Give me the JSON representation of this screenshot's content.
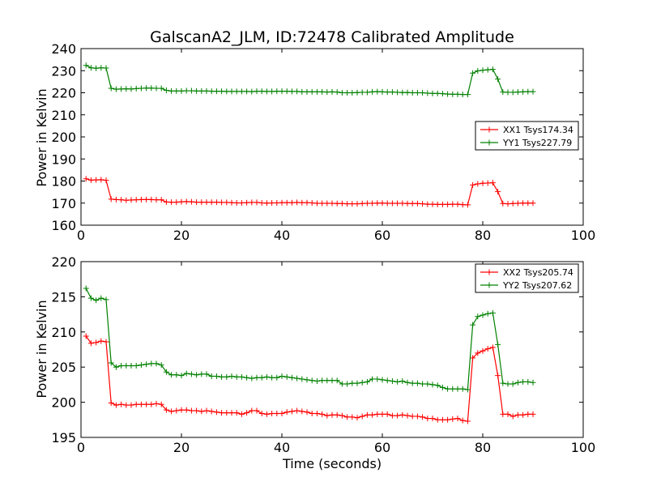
{
  "chart_data": [
    {
      "type": "line",
      "title": "GalscanA2_JLM, ID:72478 Calibrated Amplitude",
      "xlabel": "",
      "ylabel": "Power in Kelvin",
      "xlim": [
        0,
        100
      ],
      "ylim": [
        160,
        240
      ],
      "xticks": [
        0,
        20,
        40,
        60,
        80,
        100
      ],
      "yticks": [
        160,
        170,
        180,
        190,
        200,
        210,
        220,
        230,
        240
      ],
      "xtick_labels": [
        "0",
        "20",
        "40",
        "60",
        "80",
        "100"
      ],
      "ytick_labels": [
        "160",
        "170",
        "180",
        "190",
        "200",
        "210",
        "220",
        "230",
        "240"
      ],
      "grid": false,
      "legend_position": "center-right",
      "marker": "+",
      "x": [
        1,
        2,
        3,
        4,
        5,
        6,
        7,
        8,
        9,
        10,
        11,
        12,
        13,
        14,
        15,
        16,
        17,
        18,
        19,
        20,
        21,
        22,
        23,
        24,
        25,
        26,
        27,
        28,
        29,
        30,
        31,
        32,
        33,
        34,
        35,
        36,
        37,
        38,
        39,
        40,
        41,
        42,
        43,
        44,
        45,
        46,
        47,
        48,
        49,
        50,
        51,
        52,
        53,
        54,
        55,
        56,
        57,
        58,
        59,
        60,
        61,
        62,
        63,
        64,
        65,
        66,
        67,
        68,
        69,
        70,
        71,
        72,
        73,
        74,
        75,
        76,
        77,
        78,
        79,
        80,
        81,
        82,
        83,
        84,
        85,
        86,
        87,
        88,
        89,
        90
      ],
      "series": [
        {
          "name": "XX1 Tsys174.34",
          "color": "#ff0000",
          "values": [
            181.0,
            180.4,
            180.5,
            180.6,
            180.3,
            171.8,
            171.6,
            171.5,
            171.3,
            171.4,
            171.5,
            171.6,
            171.6,
            171.6,
            171.5,
            171.5,
            170.5,
            170.4,
            170.4,
            170.6,
            170.7,
            170.6,
            170.4,
            170.4,
            170.4,
            170.4,
            170.4,
            170.3,
            170.3,
            170.2,
            170.1,
            170.1,
            170.2,
            170.3,
            170.3,
            170.1,
            170.0,
            170.1,
            170.1,
            170.2,
            170.2,
            170.2,
            170.3,
            170.2,
            170.2,
            170.1,
            169.9,
            169.9,
            169.9,
            169.9,
            169.8,
            169.8,
            169.7,
            169.7,
            169.7,
            169.8,
            169.9,
            169.9,
            170.0,
            170.0,
            169.9,
            169.9,
            169.9,
            169.9,
            169.8,
            169.8,
            169.8,
            169.7,
            169.5,
            169.5,
            169.4,
            169.4,
            169.4,
            169.5,
            169.5,
            169.3,
            169.2,
            178.2,
            178.7,
            179.0,
            179.1,
            179.2,
            175.2,
            169.8,
            169.7,
            169.8,
            169.9,
            170.0,
            170.0,
            170.0
          ]
        },
        {
          "name": "YY1 Tsys227.79",
          "color": "#008000",
          "values": [
            232.4,
            231.3,
            231.1,
            231.3,
            231.2,
            222.0,
            221.6,
            221.7,
            221.8,
            221.7,
            221.9,
            222.0,
            222.1,
            222.1,
            222.0,
            222.0,
            221.1,
            220.8,
            220.8,
            220.8,
            220.9,
            220.9,
            220.8,
            220.8,
            220.8,
            220.7,
            220.7,
            220.7,
            220.6,
            220.6,
            220.6,
            220.6,
            220.6,
            220.5,
            220.7,
            220.7,
            220.6,
            220.6,
            220.7,
            220.7,
            220.7,
            220.6,
            220.6,
            220.4,
            220.4,
            220.4,
            220.4,
            220.4,
            220.3,
            220.4,
            220.3,
            220.0,
            220.0,
            220.0,
            220.1,
            220.2,
            220.2,
            220.4,
            220.5,
            220.4,
            220.3,
            220.3,
            220.2,
            220.1,
            220.1,
            220.0,
            220.0,
            220.0,
            219.8,
            219.7,
            219.7,
            219.6,
            219.4,
            219.3,
            219.3,
            219.2,
            219.2,
            228.9,
            229.9,
            230.2,
            230.4,
            230.6,
            226.2,
            220.3,
            220.2,
            220.2,
            220.3,
            220.4,
            220.5,
            220.5
          ]
        }
      ]
    },
    {
      "type": "line",
      "title": "",
      "xlabel": "Time (seconds)",
      "ylabel": "Power in Kelvin",
      "xlim": [
        0,
        100
      ],
      "ylim": [
        195,
        220
      ],
      "xticks": [
        0,
        20,
        40,
        60,
        80,
        100
      ],
      "yticks": [
        195,
        200,
        205,
        210,
        215,
        220
      ],
      "xtick_labels": [
        "0",
        "20",
        "40",
        "60",
        "80",
        "100"
      ],
      "ytick_labels": [
        "195",
        "200",
        "205",
        "210",
        "215",
        "220"
      ],
      "grid": false,
      "legend_position": "top-right",
      "marker": "+",
      "x": [
        1,
        2,
        3,
        4,
        5,
        6,
        7,
        8,
        9,
        10,
        11,
        12,
        13,
        14,
        15,
        16,
        17,
        18,
        19,
        20,
        21,
        22,
        23,
        24,
        25,
        26,
        27,
        28,
        29,
        30,
        31,
        32,
        33,
        34,
        35,
        36,
        37,
        38,
        39,
        40,
        41,
        42,
        43,
        44,
        45,
        46,
        47,
        48,
        49,
        50,
        51,
        52,
        53,
        54,
        55,
        56,
        57,
        58,
        59,
        60,
        61,
        62,
        63,
        64,
        65,
        66,
        67,
        68,
        69,
        70,
        71,
        72,
        73,
        74,
        75,
        76,
        77,
        78,
        79,
        80,
        81,
        82,
        83,
        84,
        85,
        86,
        87,
        88,
        89,
        90
      ],
      "series": [
        {
          "name": "XX2 Tsys205.74",
          "color": "#ff0000",
          "values": [
            209.4,
            208.4,
            208.5,
            208.7,
            208.6,
            199.9,
            199.6,
            199.7,
            199.6,
            199.6,
            199.7,
            199.7,
            199.7,
            199.7,
            199.8,
            199.7,
            198.9,
            198.7,
            198.8,
            198.9,
            198.9,
            198.8,
            198.8,
            198.7,
            198.8,
            198.7,
            198.6,
            198.5,
            198.5,
            198.5,
            198.5,
            198.3,
            198.5,
            198.8,
            198.8,
            198.4,
            198.3,
            198.4,
            198.4,
            198.4,
            198.6,
            198.7,
            198.8,
            198.7,
            198.6,
            198.4,
            198.4,
            198.3,
            198.1,
            198.2,
            198.2,
            198.1,
            197.9,
            197.9,
            197.8,
            198.0,
            198.2,
            198.2,
            198.3,
            198.3,
            198.3,
            198.1,
            198.1,
            198.2,
            198.1,
            198.0,
            198.0,
            197.9,
            197.7,
            197.7,
            197.5,
            197.5,
            197.5,
            197.6,
            197.7,
            197.4,
            197.3,
            206.3,
            207.0,
            207.3,
            207.6,
            207.8,
            203.8,
            198.3,
            198.3,
            198.0,
            198.2,
            198.2,
            198.3,
            198.3
          ]
        },
        {
          "name": "YY2 Tsys207.62",
          "color": "#008000",
          "values": [
            216.2,
            214.8,
            214.5,
            214.8,
            214.6,
            205.6,
            205.0,
            205.2,
            205.2,
            205.2,
            205.2,
            205.3,
            205.4,
            205.5,
            205.5,
            205.3,
            204.3,
            203.9,
            203.9,
            203.8,
            204.1,
            204.0,
            203.9,
            204.0,
            204.0,
            203.7,
            203.7,
            203.6,
            203.6,
            203.7,
            203.6,
            203.6,
            203.5,
            203.4,
            203.5,
            203.5,
            203.6,
            203.5,
            203.5,
            203.7,
            203.6,
            203.5,
            203.4,
            203.3,
            203.2,
            203.1,
            203.0,
            203.1,
            203.1,
            203.1,
            203.1,
            202.6,
            202.6,
            202.7,
            202.7,
            202.8,
            202.9,
            203.3,
            203.3,
            203.2,
            203.1,
            203.0,
            202.9,
            203.0,
            202.8,
            202.7,
            202.7,
            202.6,
            202.6,
            202.5,
            202.4,
            202.1,
            201.9,
            201.9,
            201.9,
            201.9,
            201.8,
            211.0,
            212.2,
            212.4,
            212.6,
            212.7,
            208.2,
            202.7,
            202.6,
            202.6,
            202.8,
            202.9,
            202.9,
            202.8
          ]
        }
      ]
    }
  ]
}
